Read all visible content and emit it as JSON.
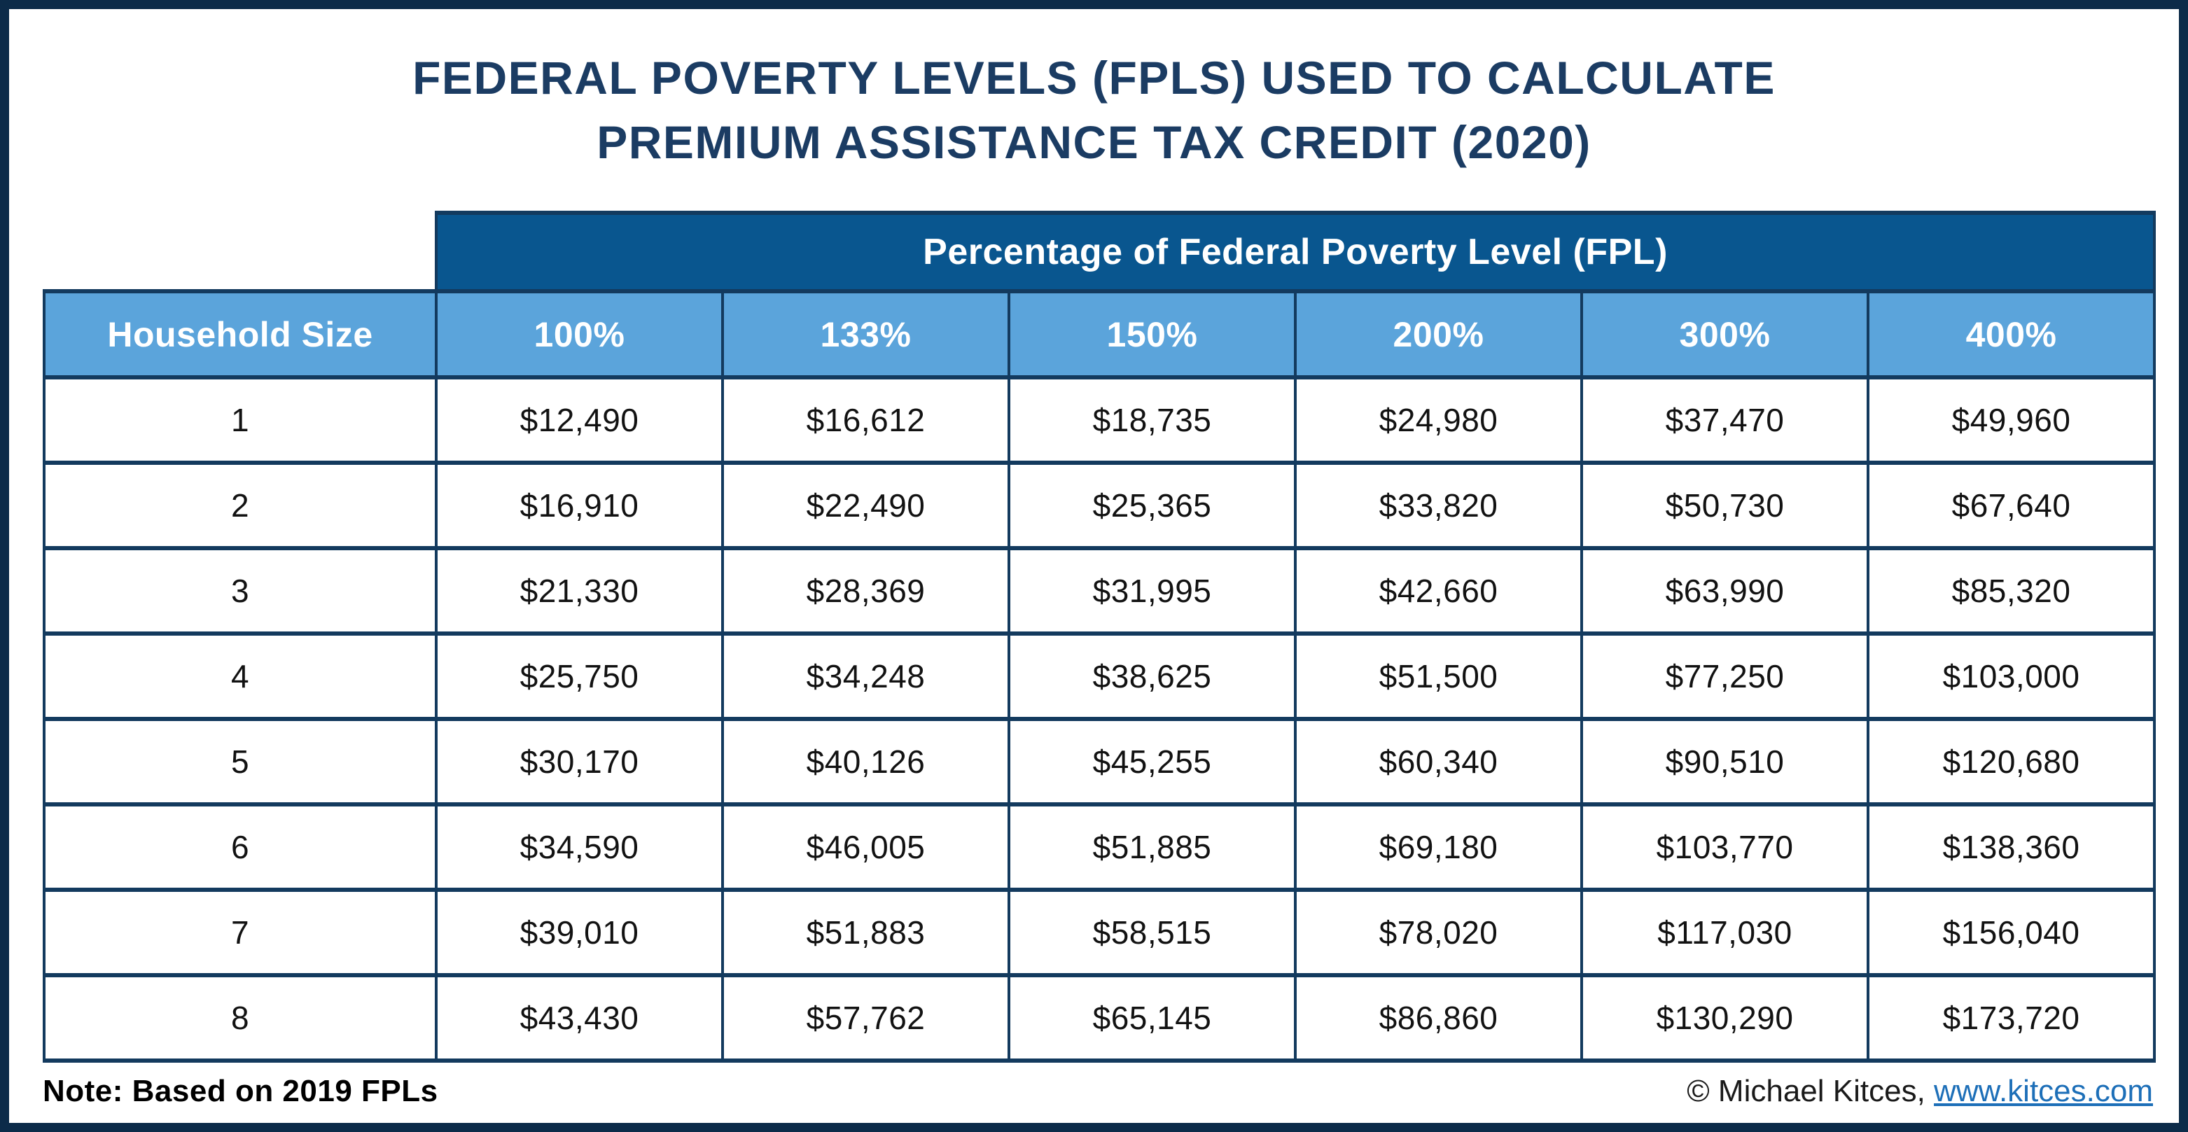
{
  "title": {
    "line1": "FEDERAL POVERTY LEVELS (FPLS) USED TO CALCULATE",
    "line2": "PREMIUM ASSISTANCE TAX CREDIT (2020)"
  },
  "table": {
    "banner": "Percentage of Federal Poverty Level (FPL)",
    "row_header": "Household Size",
    "columns": [
      "100%",
      "133%",
      "150%",
      "200%",
      "300%",
      "400%"
    ],
    "rows": [
      {
        "household_size": "1",
        "values": [
          "$12,490",
          "$16,612",
          "$18,735",
          "$24,980",
          "$37,470",
          "$49,960"
        ]
      },
      {
        "household_size": "2",
        "values": [
          "$16,910",
          "$22,490",
          "$25,365",
          "$33,820",
          "$50,730",
          "$67,640"
        ]
      },
      {
        "household_size": "3",
        "values": [
          "$21,330",
          "$28,369",
          "$31,995",
          "$42,660",
          "$63,990",
          "$85,320"
        ]
      },
      {
        "household_size": "4",
        "values": [
          "$25,750",
          "$34,248",
          "$38,625",
          "$51,500",
          "$77,250",
          "$103,000"
        ]
      },
      {
        "household_size": "5",
        "values": [
          "$30,170",
          "$40,126",
          "$45,255",
          "$60,340",
          "$90,510",
          "$120,680"
        ]
      },
      {
        "household_size": "6",
        "values": [
          "$34,590",
          "$46,005",
          "$51,885",
          "$69,180",
          "$103,770",
          "$138,360"
        ]
      },
      {
        "household_size": "7",
        "values": [
          "$39,010",
          "$51,883",
          "$58,515",
          "$78,020",
          "$117,030",
          "$156,040"
        ]
      },
      {
        "household_size": "8",
        "values": [
          "$43,430",
          "$57,762",
          "$65,145",
          "$86,860",
          "$130,290",
          "$173,720"
        ]
      }
    ]
  },
  "footer": {
    "note": "Note: Based on 2019 FPLs",
    "copyright_prefix": "© Michael Kitces, ",
    "link_text": "www.kitces.com"
  },
  "colors": {
    "frame_navy": "#0c2b49",
    "banner_blue": "#09568f",
    "header_light_blue": "#5ba4db",
    "border_navy": "#133a5e",
    "title_navy": "#1b3c63",
    "link_blue": "#1d6fb8"
  },
  "chart_data": {
    "type": "table",
    "title": "Federal Poverty Levels (FPLs) Used To Calculate Premium Assistance Tax Credit (2020)",
    "group_header": "Percentage of Federal Poverty Level (FPL)",
    "row_label": "Household Size",
    "columns_pct_of_fpl": [
      100,
      133,
      150,
      200,
      300,
      400
    ],
    "rows": [
      {
        "household_size": 1,
        "values": [
          12490,
          16612,
          18735,
          24980,
          37470,
          49960
        ]
      },
      {
        "household_size": 2,
        "values": [
          16910,
          22490,
          25365,
          33820,
          50730,
          67640
        ]
      },
      {
        "household_size": 3,
        "values": [
          21330,
          28369,
          31995,
          42660,
          63990,
          85320
        ]
      },
      {
        "household_size": 4,
        "values": [
          25750,
          34248,
          38625,
          51500,
          77250,
          103000
        ]
      },
      {
        "household_size": 5,
        "values": [
          30170,
          40126,
          45255,
          60340,
          90510,
          120680
        ]
      },
      {
        "household_size": 6,
        "values": [
          34590,
          46005,
          51885,
          69180,
          103770,
          138360
        ]
      },
      {
        "household_size": 7,
        "values": [
          39010,
          51883,
          58515,
          78020,
          117030,
          156040
        ]
      },
      {
        "household_size": 8,
        "values": [
          43430,
          57762,
          65145,
          86860,
          130290,
          173720
        ]
      }
    ],
    "note": "Based on 2019 FPLs",
    "source": "© Michael Kitces, www.kitces.com"
  }
}
